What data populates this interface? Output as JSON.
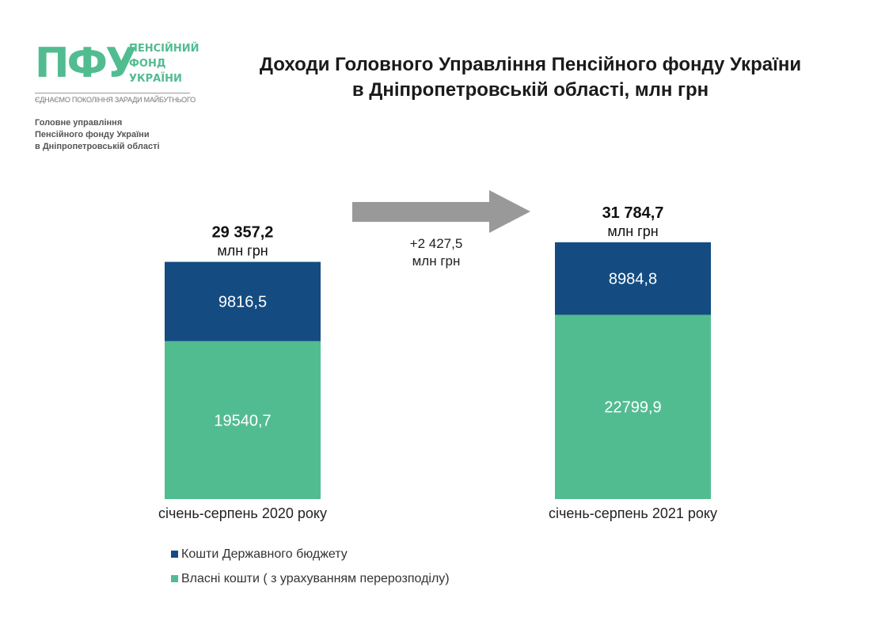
{
  "logo": {
    "letters": "ПФУ",
    "words": [
      "ПЕНСІЙНИЙ",
      "ФОНД",
      "УКРАЇНИ"
    ],
    "tagline": "ЄДНАЄМО ПОКОЛІННЯ ЗАРАДИ МАЙБУТНЬОГО"
  },
  "org": [
    "Головне управління",
    "Пенсійного фонду України",
    "в Дніпропетровській області"
  ],
  "title": [
    "Доходи Головного Управління Пенсійного фонду України",
    "в Дніпропетровській області, млн грн"
  ],
  "colors": {
    "budget": "#144c82",
    "own": "#52bc91",
    "arrow": "#999999",
    "brand": "#52bc91"
  },
  "chart_data": {
    "type": "bar",
    "stacked": true,
    "categories": [
      "січень-серпень 2020 року",
      "січень-серпень 2021 року"
    ],
    "series": [
      {
        "name": "Власні кошти ( з урахуванням перерозподілу)",
        "values": [
          19540.7,
          22799.9
        ],
        "labels": [
          "19540,7",
          "22799,9"
        ]
      },
      {
        "name": "Кошти Державного бюджету",
        "values": [
          9816.5,
          8984.8
        ],
        "labels": [
          "9816,5",
          "8984,8"
        ]
      }
    ],
    "totals": [
      {
        "value": "29 357,2",
        "unit": "млн грн"
      },
      {
        "value": "31 784,7",
        "unit": "млн грн"
      }
    ],
    "change": {
      "value": "+2 427,5",
      "unit": "млн грн"
    },
    "legend": [
      "Кошти Державного бюджету",
      "Власні кошти ( з урахуванням перерозподілу)"
    ],
    "legend_position": "bottom-left",
    "grid": false
  }
}
